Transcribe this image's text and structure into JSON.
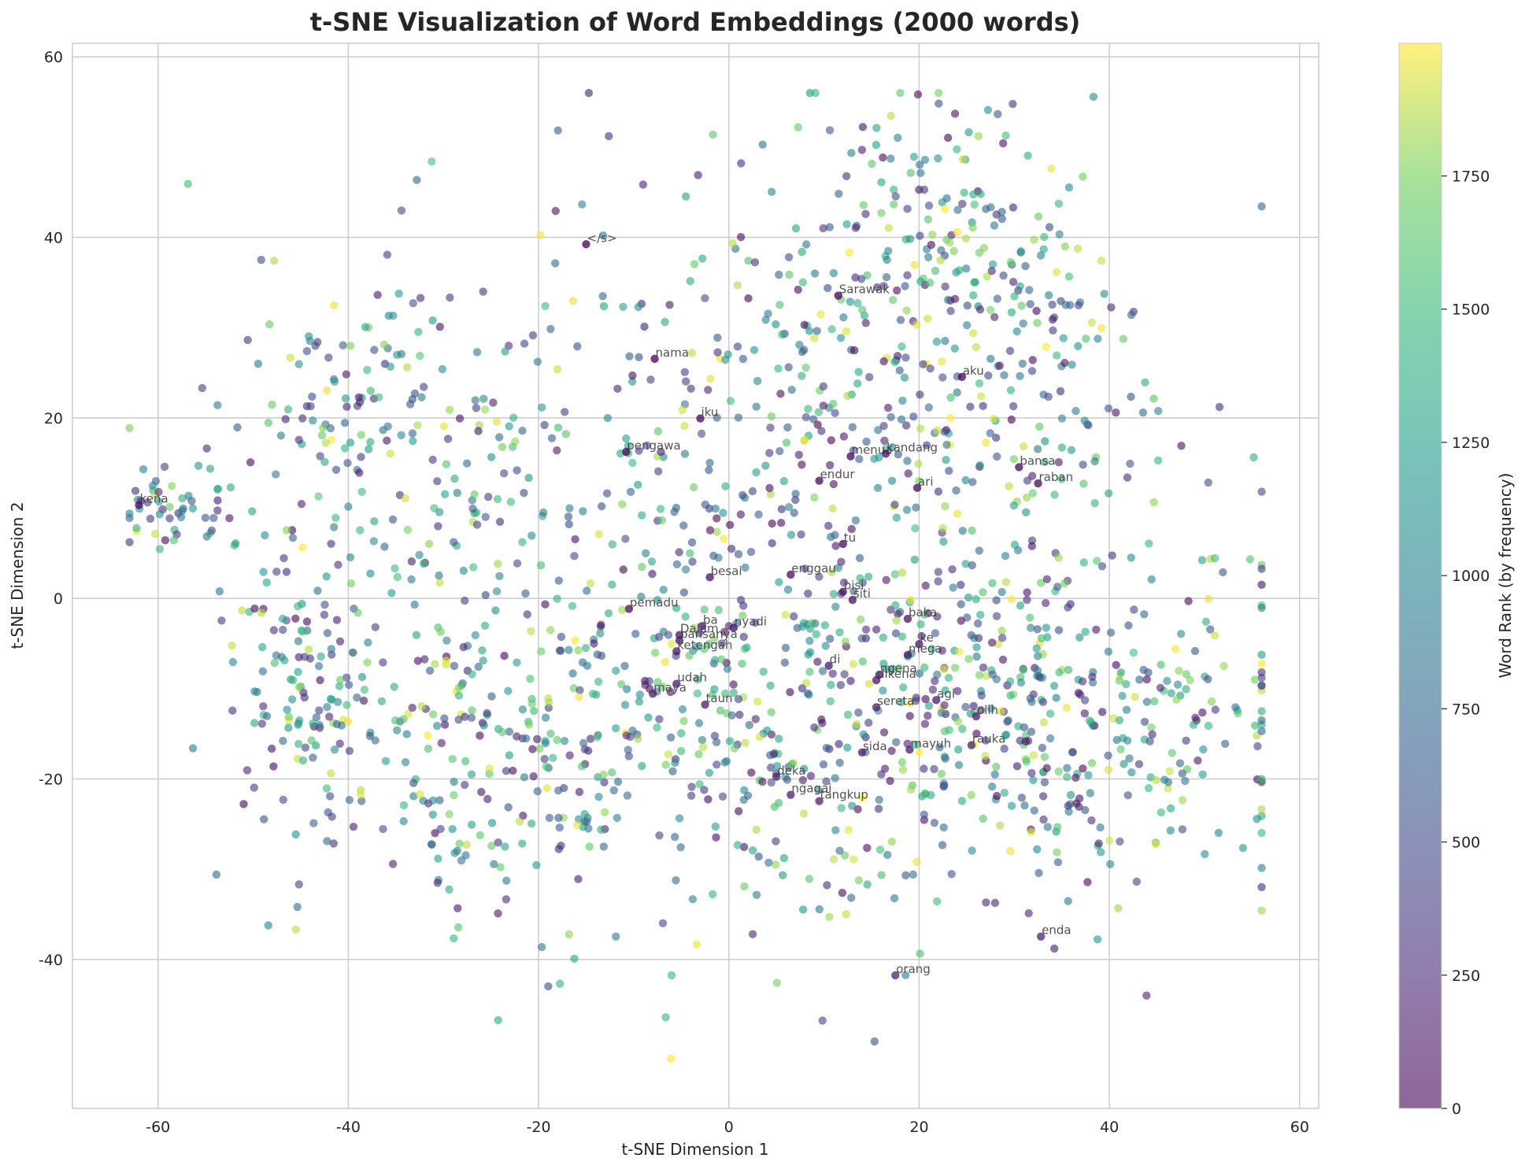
{
  "chart_data": {
    "type": "scatter",
    "title": "t-SNE Visualization of Word Embeddings (2000 words)",
    "xlabel": "t-SNE Dimension 1",
    "ylabel": "t-SNE Dimension 2",
    "xlim": [
      -69,
      62
    ],
    "ylim": [
      -56.5,
      61.5
    ],
    "xticks": [
      -60,
      -40,
      -20,
      0,
      20,
      40,
      60
    ],
    "yticks": [
      -40,
      -20,
      0,
      20,
      40,
      60
    ],
    "grid": true,
    "point_count": 2000,
    "colorbar": {
      "label": "Word Rank (by frequency)",
      "range": [
        0,
        1999
      ],
      "ticks": [
        0,
        250,
        500,
        750,
        1000,
        1250,
        1500,
        1750
      ],
      "colormap": "viridis",
      "alpha": 0.6
    },
    "annotations": [
      {
        "text": "</s>",
        "x": -15.0,
        "y": 39.5
      },
      {
        "text": "Sarawak",
        "x": 11.5,
        "y": 33.8
      },
      {
        "text": "nama",
        "x": -7.8,
        "y": 26.8
      },
      {
        "text": "aku",
        "x": 24.5,
        "y": 24.8
      },
      {
        "text": "iku",
        "x": -3.0,
        "y": 20.2
      },
      {
        "text": "pengawa",
        "x": -10.8,
        "y": 16.5
      },
      {
        "text": "menua",
        "x": 12.8,
        "y": 16.0
      },
      {
        "text": "kandang",
        "x": 16.5,
        "y": 16.3
      },
      {
        "text": "bansa",
        "x": 30.5,
        "y": 14.8
      },
      {
        "text": "endur",
        "x": 9.5,
        "y": 13.3
      },
      {
        "text": "raban",
        "x": 32.5,
        "y": 13.0
      },
      {
        "text": "ari",
        "x": 19.8,
        "y": 12.5
      },
      {
        "text": "kena",
        "x": -62.0,
        "y": 10.6
      },
      {
        "text": "tu",
        "x": 12.0,
        "y": 6.3
      },
      {
        "text": "enggau",
        "x": 6.5,
        "y": 2.9
      },
      {
        "text": "besai",
        "x": -2.0,
        "y": 2.6
      },
      {
        "text": "bisi",
        "x": 12.0,
        "y": 1.0
      },
      {
        "text": "siti",
        "x": 13.0,
        "y": 0.1
      },
      {
        "text": "pemadu",
        "x": -10.5,
        "y": -0.9
      },
      {
        "text": "baka",
        "x": 18.8,
        "y": -2.0
      },
      {
        "text": "ba",
        "x": -2.8,
        "y": -2.8
      },
      {
        "text": "nyadi",
        "x": 0.5,
        "y": -3.0
      },
      {
        "text": "Dalam",
        "x": -5.2,
        "y": -3.8
      },
      {
        "text": "bansanya",
        "x": -5.2,
        "y": -4.4
      },
      {
        "text": "ke",
        "x": 20.0,
        "y": -4.8
      },
      {
        "text": "ketengah",
        "x": -5.5,
        "y": -5.6
      },
      {
        "text": "mega",
        "x": 18.8,
        "y": -6.0
      },
      {
        "text": "di",
        "x": 10.5,
        "y": -7.2
      },
      {
        "text": "ngena",
        "x": 15.8,
        "y": -8.2
      },
      {
        "text": "dikena",
        "x": 15.5,
        "y": -8.8
      },
      {
        "text": "udah",
        "x": -5.5,
        "y": -9.2
      },
      {
        "text": "maya",
        "x": -8.0,
        "y": -10.3
      },
      {
        "text": "agi",
        "x": 21.8,
        "y": -11.0
      },
      {
        "text": "taun",
        "x": -2.5,
        "y": -11.5
      },
      {
        "text": "sereta",
        "x": 15.5,
        "y": -11.8
      },
      {
        "text": "olih",
        "x": 26.0,
        "y": -12.8
      },
      {
        "text": "mayuh",
        "x": 19.0,
        "y": -16.5
      },
      {
        "text": "sida",
        "x": 14.0,
        "y": -16.8
      },
      {
        "text": "rauka",
        "x": 25.5,
        "y": -16.0
      },
      {
        "text": "deka",
        "x": 5.0,
        "y": -19.5
      },
      {
        "text": "ngagai",
        "x": 6.5,
        "y": -21.5
      },
      {
        "text": "tangkup",
        "x": 9.5,
        "y": -22.2
      },
      {
        "text": "enda",
        "x": 32.8,
        "y": -37.2
      },
      {
        "text": "orang",
        "x": 17.5,
        "y": -41.5
      }
    ]
  }
}
